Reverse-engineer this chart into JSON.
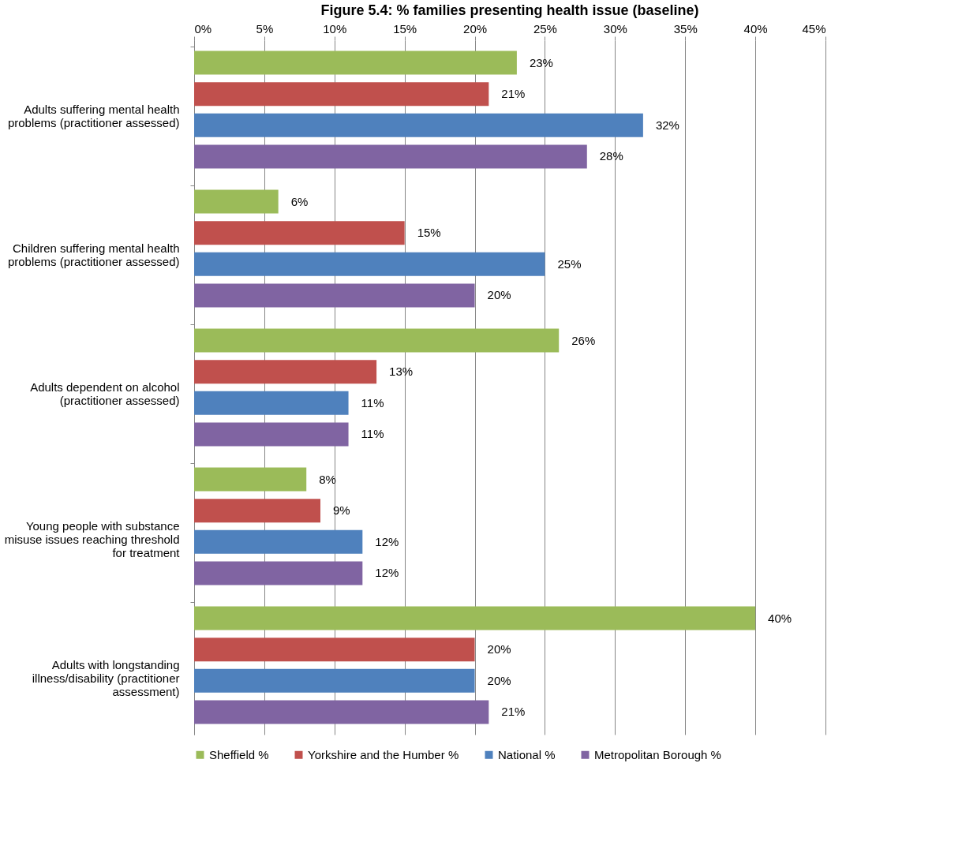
{
  "chart_data": {
    "type": "bar",
    "orientation": "horizontal",
    "title": "Figure 5.4: % families presenting health issue (baseline)",
    "categories": [
      "Adults suffering mental health problems (practitioner assessed)",
      "Children suffering mental health problems (practitioner assessed)",
      "Adults dependent on alcohol (practitioner assessed)",
      "Young people with substance misuse issues reaching threshold for treatment",
      "Adults with longstanding illness/disability (practitioner assessment)"
    ],
    "series": [
      {
        "name": "Sheffield %",
        "color": "#9bbb59",
        "values": [
          23,
          6,
          26,
          8,
          40
        ],
        "value_labels": [
          "23%",
          "6%",
          "26%",
          "8%",
          "40%"
        ]
      },
      {
        "name": "Yorkshire and the Humber %",
        "color": "#c0504d",
        "values": [
          21,
          15,
          13,
          9,
          20
        ],
        "value_labels": [
          "21%",
          "15%",
          "13%",
          "9%",
          "20%"
        ]
      },
      {
        "name": "National %",
        "color": "#4f81bd",
        "values": [
          32,
          25,
          11,
          12,
          20
        ],
        "value_labels": [
          "32%",
          "25%",
          "11%",
          "12%",
          "20%"
        ]
      },
      {
        "name": "Metropolitan Borough %",
        "color": "#8064a2",
        "values": [
          28,
          20,
          11,
          12,
          21
        ],
        "value_labels": [
          "28%",
          "20%",
          "11%",
          "12%",
          "21%"
        ]
      }
    ],
    "xlim": [
      0,
      45
    ],
    "xticks": [
      {
        "value": 0,
        "label": "0%"
      },
      {
        "value": 5,
        "label": "5%"
      },
      {
        "value": 10,
        "label": "10%"
      },
      {
        "value": 15,
        "label": "15%"
      },
      {
        "value": 20,
        "label": "20%"
      },
      {
        "value": 25,
        "label": "25%"
      },
      {
        "value": 30,
        "label": "30%"
      },
      {
        "value": 35,
        "label": "35%"
      },
      {
        "value": 40,
        "label": "40%"
      },
      {
        "value": 45,
        "label": "45%"
      }
    ],
    "grid": "x",
    "legend": "bottom"
  }
}
